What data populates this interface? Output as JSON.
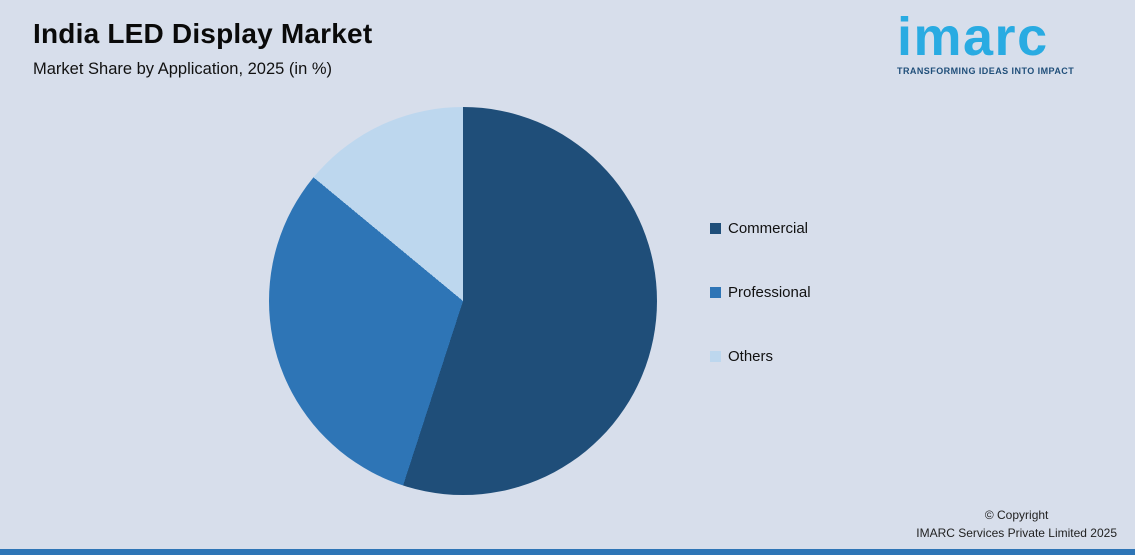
{
  "title": "India LED Display Market",
  "subtitle": "Market Share by Application, 2025 (in %)",
  "logo": {
    "text": "imarc",
    "tagline": "TRANSFORMING IDEAS INTO IMPACT"
  },
  "copyright": {
    "line1": "© Copyright",
    "line2": "IMARC Services Private Limited 2025"
  },
  "colors": {
    "background": "#d7deeb",
    "commercial": "#1F4E79",
    "professional": "#2E75B6",
    "others": "#BDD7EE",
    "logo_blue": "#29ABE2",
    "tagline_blue": "#1F4E79",
    "accent_bar": "#2E75B6"
  },
  "chart_data": {
    "type": "pie",
    "title": "India LED Display Market",
    "subtitle": "Market Share by Application, 2025 (in %)",
    "categories": [
      "Commercial",
      "Professional",
      "Others"
    ],
    "values": [
      55,
      31,
      14
    ],
    "colors": [
      "#1F4E79",
      "#2E75B6",
      "#BDD7EE"
    ],
    "unit": "%",
    "legend_position": "right",
    "start_angle_deg": 0,
    "direction": "clockwise",
    "data_labels": false
  }
}
